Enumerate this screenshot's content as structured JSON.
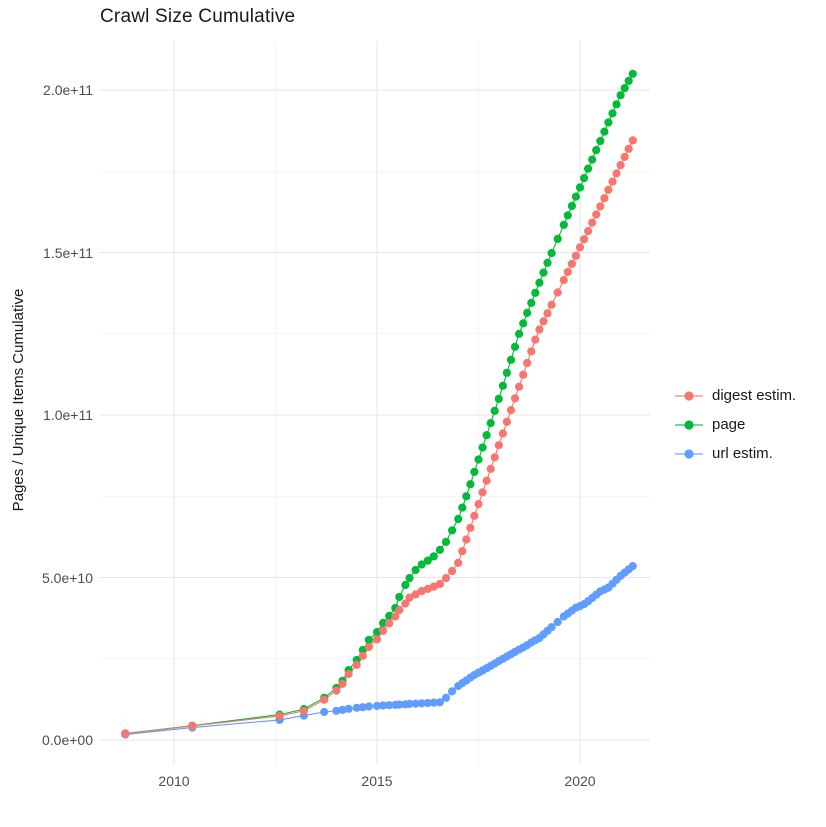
{
  "title": "Crawl Size Cumulative",
  "chart_data": {
    "type": "scatter",
    "title": "Crawl Size Cumulative",
    "xlabel": "",
    "ylabel": "Pages / Unique Items Cumulative",
    "values_unit": "1e9 (billions of pages / unique items)",
    "x_unit": "year (decimal)",
    "grid": "major+minor",
    "legend_position": "right",
    "xlim": [
      2008.1,
      2021.75
    ],
    "ylim": [
      0,
      215000000000.0
    ],
    "x_ticks": [
      2010,
      2015,
      2020
    ],
    "x_tick_labels": [
      "2010",
      "2015",
      "2020"
    ],
    "x_minor_ticks": [
      2012.5,
      2017.5
    ],
    "y_ticks": [
      {
        "label": "0.0e+00",
        "value_1e9": 0
      },
      {
        "label": "5.0e+10",
        "value_1e9": 50
      },
      {
        "label": "1.0e+11",
        "value_1e9": 100
      },
      {
        "label": "1.5e+11",
        "value_1e9": 150
      },
      {
        "label": "2.0e+11",
        "value_1e9": 200
      }
    ],
    "y_minor_values_1e9": [
      25,
      75,
      125,
      175
    ],
    "x": [
      2008.8,
      2010.45,
      2012.6,
      2013.2,
      2013.7,
      2014.0,
      2014.15,
      2014.3,
      2014.5,
      2014.65,
      2014.8,
      2015.0,
      2015.15,
      2015.3,
      2015.45,
      2015.55,
      2015.7,
      2015.8,
      2015.95,
      2016.1,
      2016.25,
      2016.4,
      2016.55,
      2016.7,
      2016.85,
      2017.0,
      2017.1,
      2017.2,
      2017.3,
      2017.4,
      2017.5,
      2017.6,
      2017.7,
      2017.8,
      2017.9,
      2018.0,
      2018.1,
      2018.2,
      2018.3,
      2018.4,
      2018.5,
      2018.6,
      2018.7,
      2018.8,
      2018.9,
      2019.0,
      2019.1,
      2019.2,
      2019.3,
      2019.45,
      2019.6,
      2019.7,
      2019.8,
      2019.9,
      2020.0,
      2020.1,
      2020.2,
      2020.3,
      2020.4,
      2020.5,
      2020.6,
      2020.7,
      2020.8,
      2020.9,
      2021.0,
      2021.1,
      2021.2,
      2021.3
    ],
    "series": [
      {
        "name": "digest estim.",
        "color": "#f8766d",
        "values_1e9": [
          1.9,
          4.3,
          7.4,
          9.0,
          12.4,
          15.2,
          17.3,
          20.3,
          23.1,
          25.9,
          28.6,
          31.0,
          33.6,
          35.9,
          38.0,
          40.0,
          42.0,
          43.8,
          44.8,
          45.8,
          46.5,
          47.2,
          48.0,
          49.8,
          52.0,
          54.5,
          58.1,
          61.7,
          65.3,
          69.0,
          72.6,
          76.2,
          79.8,
          83.4,
          87.0,
          90.7,
          94.3,
          97.9,
          101.5,
          105.1,
          108.7,
          112.4,
          116.0,
          119.6,
          123.2,
          126.3,
          128.8,
          131.3,
          133.9,
          137.7,
          141.5,
          144.0,
          146.5,
          149.0,
          151.6,
          154.1,
          156.6,
          159.2,
          161.7,
          164.2,
          166.7,
          169.3,
          171.8,
          174.3,
          176.9,
          179.4,
          181.9,
          184.5
        ]
      },
      {
        "name": "page",
        "color": "#00ba38",
        "values_1e9": [
          2.0,
          4.4,
          7.8,
          9.5,
          13.0,
          16.0,
          18.2,
          21.5,
          24.6,
          27.7,
          30.8,
          33.2,
          36.0,
          38.2,
          40.6,
          44.0,
          47.7,
          49.8,
          52.3,
          54.0,
          55.2,
          56.5,
          58.5,
          61.0,
          64.5,
          68.0,
          71.5,
          75.0,
          78.7,
          82.5,
          86.3,
          90.0,
          93.8,
          97.5,
          101.3,
          105.0,
          109.0,
          113.0,
          117.0,
          121.0,
          125.0,
          128.2,
          131.4,
          134.5,
          137.6,
          140.7,
          143.8,
          146.8,
          149.8,
          154.2,
          158.5,
          161.4,
          164.3,
          167.2,
          170.0,
          172.9,
          175.8,
          178.6,
          181.5,
          184.3,
          187.2,
          190.0,
          192.8,
          195.6,
          198.4,
          200.6,
          202.8,
          205.0
        ]
      },
      {
        "name": "url estim.",
        "color": "#619cff",
        "values_1e9": [
          1.7,
          3.8,
          6.2,
          7.5,
          8.6,
          9.0,
          9.3,
          9.6,
          9.9,
          10.1,
          10.3,
          10.5,
          10.6,
          10.7,
          10.8,
          10.9,
          11.0,
          11.1,
          11.2,
          11.3,
          11.4,
          11.5,
          11.6,
          13.0,
          15.0,
          16.6,
          17.5,
          18.3,
          19.2,
          20.0,
          20.7,
          21.4,
          22.1,
          22.8,
          23.5,
          24.3,
          25.0,
          25.7,
          26.4,
          27.1,
          27.8,
          28.5,
          29.2,
          30.0,
          30.7,
          31.4,
          32.5,
          33.6,
          34.7,
          36.3,
          38.0,
          38.9,
          39.8,
          40.7,
          41.2,
          41.8,
          42.7,
          43.7,
          44.7,
          45.7,
          46.3,
          46.9,
          48.1,
          49.3,
          50.5,
          51.5,
          52.5,
          53.5
        ]
      }
    ],
    "colors": {
      "grid_major": "#e5e5e5",
      "grid_minor": "#f2f2f2",
      "tick_text": "#4d4d4d",
      "title_text": "#1a1a1a"
    }
  }
}
